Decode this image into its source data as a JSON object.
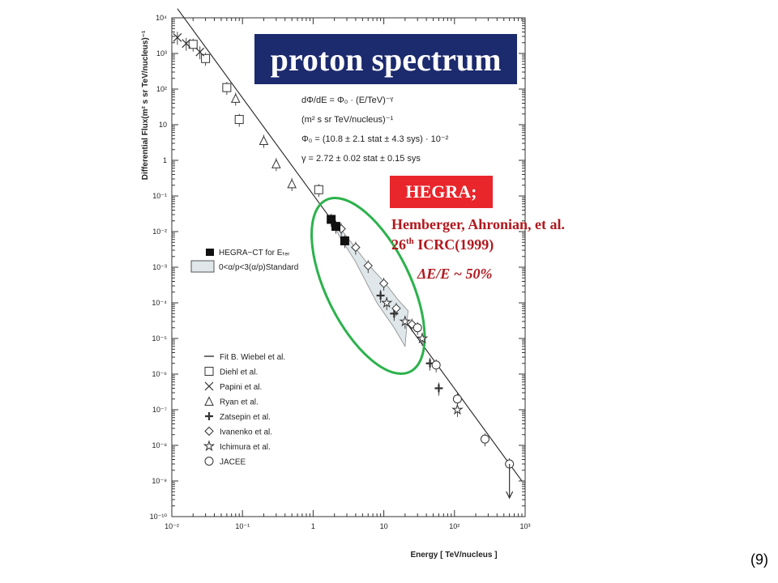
{
  "chart_data": {
    "type": "scatter",
    "title": "proton spectrum",
    "xlabel": "Energy [ TeV/nucleus ]",
    "ylabel": "Differential Flux(m² s sr TeV/nucleus)⁻¹",
    "x_scale": "log",
    "y_scale": "log",
    "xlim": [
      0.01,
      1000
    ],
    "ylim": [
      1e-10,
      10000
    ],
    "x_ticks": [
      "10⁻²",
      "10⁻¹",
      "1",
      "10",
      "10²",
      "10³"
    ],
    "y_ticks": [
      "10⁴",
      "10³",
      "10²",
      "10",
      "1",
      "10⁻¹",
      "10⁻²",
      "10⁻³",
      "10⁻⁴",
      "10⁻⁵",
      "10⁻⁶",
      "10⁻⁷",
      "10⁻⁸",
      "10⁻⁹",
      "10⁻¹⁰"
    ],
    "fit": {
      "name": "Fit B. Wiebel et al.",
      "gamma": 2.72,
      "phi0_at_1TeV": 0.108
    },
    "formula_lines": [
      "dΦ/dE = Φ₀ · (E/TeV)⁻ᵞ",
      "(m² s sr TeV/nucleus)⁻¹",
      "Φ₀ = (10.8 ± 2.1 stat ± 4.3 sys) · 10⁻²",
      "γ = 2.72 ± 0.02 stat ± 0.15 sys"
    ],
    "legend_hegra": [
      "HEGRA−CT for Eₜₑᵣ",
      "0<α/p<3(α/p)Standard"
    ],
    "legend_entries": [
      "Fit B. Wiebel et al.",
      "Diehl et al.",
      "Papini et al.",
      "Ryan et al.",
      "Zatsepin et al.",
      "Ivanenko et al.",
      "Ichimura et al.",
      "JACEE"
    ],
    "series": [
      {
        "name": "Diehl et al.",
        "marker": "square",
        "points": [
          [
            0.02,
            1800
          ],
          [
            0.03,
            720
          ],
          [
            0.06,
            110
          ],
          [
            0.09,
            14
          ],
          [
            1.2,
            0.15
          ]
        ]
      },
      {
        "name": "Papini et al.",
        "marker": "x",
        "points": [
          [
            0.012,
            2800
          ],
          [
            0.016,
            1900
          ],
          [
            0.025,
            1100
          ]
        ]
      },
      {
        "name": "Ryan et al.",
        "marker": "triangle",
        "points": [
          [
            0.08,
            55
          ],
          [
            0.2,
            3.6
          ],
          [
            0.3,
            0.8
          ],
          [
            0.5,
            0.22
          ]
        ]
      },
      {
        "name": "Zatsepin et al.",
        "marker": "cross",
        "points": [
          [
            9,
            0.00016
          ],
          [
            14,
            5e-05
          ],
          [
            45,
            2e-06
          ],
          [
            60,
            4e-07
          ]
        ]
      },
      {
        "name": "Ivanenko et al.",
        "marker": "diamond",
        "points": [
          [
            2.5,
            0.012
          ],
          [
            4,
            0.0036
          ],
          [
            6,
            0.0011
          ],
          [
            10,
            0.00035
          ],
          [
            15,
            7e-05
          ],
          [
            25,
            2.5e-05
          ]
        ]
      },
      {
        "name": "Ichimura et al.",
        "marker": "star",
        "points": [
          [
            11,
            0.0001
          ],
          [
            20,
            3e-05
          ],
          [
            35,
            1e-05
          ],
          [
            110,
            1e-07
          ]
        ]
      },
      {
        "name": "JACEE",
        "marker": "circle",
        "points": [
          [
            30,
            2e-05
          ],
          [
            55,
            1.8e-06
          ],
          [
            110,
            2e-07
          ],
          [
            270,
            1.5e-08
          ],
          [
            600,
            3e-09
          ]
        ]
      },
      {
        "name": "HEGRA−CT for Eₜₑᵣ",
        "marker": "filled-square",
        "points": [
          [
            1.8,
            0.022
          ],
          [
            2.1,
            0.014
          ],
          [
            2.8,
            0.0055
          ]
        ]
      }
    ]
  },
  "annotations": {
    "title": "proton spectrum",
    "hegra_label": "HEGRA;",
    "ref_line1": "Hemberger, Ahronian,  et al.",
    "ref_line2_pre": "26",
    "ref_line2_sup": "th",
    "ref_line2_post": " ICRC(1999)",
    "resolution": "ΔE/E ~ 50%",
    "page_number": "(9)"
  },
  "colors": {
    "title_bg": "#1c2a6e",
    "hegra_bg": "#e8262c",
    "ref_text": "#b0191e",
    "ellipse": "#2bb24c"
  }
}
